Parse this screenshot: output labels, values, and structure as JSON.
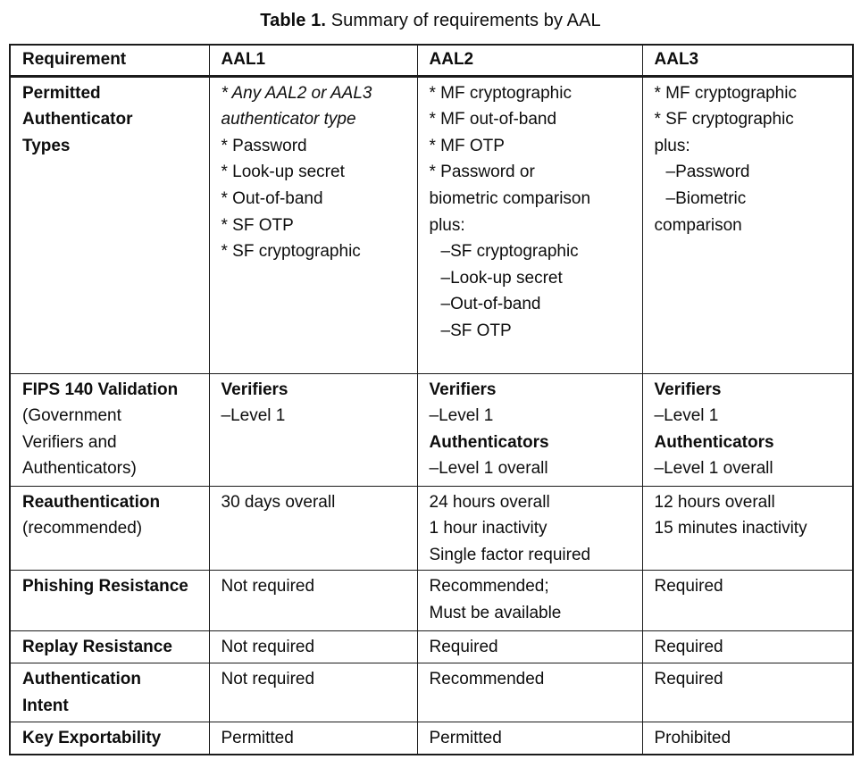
{
  "page": {
    "title_label": "Table 1.",
    "title_text": " Summary of requirements by AAL"
  },
  "table": {
    "headers": [
      "Requirement",
      "AAL1",
      "AAL2",
      "AAL3"
    ],
    "rows": [
      {
        "cells": [
          {
            "lines": [
              {
                "text": "Permitted",
                "bold": true
              },
              {
                "text": "Authenticator",
                "bold": true
              },
              {
                "text": "Types",
                "bold": true
              }
            ]
          },
          {
            "lines": [
              {
                "text": "* Any AAL2 or AAL3",
                "italic": true
              },
              {
                "text": "authenticator type",
                "italic": true
              },
              {
                "text": "* Password"
              },
              {
                "text": "* Look-up secret"
              },
              {
                "text": "* Out-of-band"
              },
              {
                "text": "* SF OTP"
              },
              {
                "text": "* SF cryptographic"
              }
            ]
          },
          {
            "lines": [
              {
                "text": "* MF cryptographic"
              },
              {
                "text": "* MF out-of-band"
              },
              {
                "text": "* MF OTP"
              },
              {
                "text": "* Password or"
              },
              {
                "text": "biometric comparison"
              },
              {
                "text": "plus:"
              },
              {
                "text": "–SF cryptographic",
                "indent": true
              },
              {
                "text": "–Look-up secret",
                "indent": true
              },
              {
                "text": "–Out-of-band",
                "indent": true
              },
              {
                "text": "–SF OTP",
                "indent": true
              }
            ]
          },
          {
            "lines": [
              {
                "text": "* MF cryptographic"
              },
              {
                "text": "* SF cryptographic"
              },
              {
                "text": "plus:"
              },
              {
                "text": "–Password",
                "indent": true
              },
              {
                "text": "–Biometric",
                "indent": true
              },
              {
                "text": "comparison"
              }
            ]
          }
        ]
      },
      {
        "cells": [
          {
            "lines": [
              {
                "text": "FIPS 140 Validation",
                "bold": true
              },
              {
                "text": "(Government"
              },
              {
                "text": "Verifiers and"
              },
              {
                "text": "Authenticators)"
              }
            ]
          },
          {
            "lines": [
              {
                "text": "Verifiers",
                "bold": true
              },
              {
                "text": "–Level 1"
              }
            ]
          },
          {
            "lines": [
              {
                "text": "Verifiers",
                "bold": true
              },
              {
                "text": "–Level 1"
              },
              {
                "text": "Authenticators",
                "bold": true
              },
              {
                "text": "–Level 1 overall"
              }
            ]
          },
          {
            "lines": [
              {
                "text": "Verifiers",
                "bold": true
              },
              {
                "text": "–Level 1"
              },
              {
                "text": "Authenticators",
                "bold": true
              },
              {
                "text": "–Level 1 overall"
              }
            ]
          }
        ]
      },
      {
        "cells": [
          {
            "lines": [
              {
                "text": "Reauthentication",
                "bold": true
              },
              {
                "text": "(recommended)"
              }
            ]
          },
          {
            "lines": [
              {
                "text": "30 days overall"
              }
            ]
          },
          {
            "lines": [
              {
                "text": "24 hours overall"
              },
              {
                "text": "1 hour inactivity"
              },
              {
                "text": "Single factor required"
              }
            ]
          },
          {
            "lines": [
              {
                "text": "12 hours overall"
              },
              {
                "text": "15 minutes inactivity"
              }
            ]
          }
        ]
      },
      {
        "cells": [
          {
            "lines": [
              {
                "text": "Phishing Resistance",
                "bold": true
              }
            ]
          },
          {
            "lines": [
              {
                "text": "Not required"
              }
            ]
          },
          {
            "lines": [
              {
                "text": "Recommended;"
              },
              {
                "text": "Must be available"
              }
            ]
          },
          {
            "lines": [
              {
                "text": "Required"
              }
            ]
          }
        ]
      },
      {
        "cells": [
          {
            "lines": [
              {
                "text": "Replay Resistance",
                "bold": true
              }
            ]
          },
          {
            "lines": [
              {
                "text": "Not required"
              }
            ]
          },
          {
            "lines": [
              {
                "text": "Required"
              }
            ]
          },
          {
            "lines": [
              {
                "text": "Required"
              }
            ]
          }
        ]
      },
      {
        "cells": [
          {
            "lines": [
              {
                "text": "Authentication",
                "bold": true
              },
              {
                "text": "Intent",
                "bold": true
              }
            ]
          },
          {
            "lines": [
              {
                "text": "Not required"
              }
            ]
          },
          {
            "lines": [
              {
                "text": "Recommended"
              }
            ]
          },
          {
            "lines": [
              {
                "text": "Required"
              }
            ]
          }
        ]
      },
      {
        "cells": [
          {
            "lines": [
              {
                "text": "Key Exportability",
                "bold": true
              }
            ]
          },
          {
            "lines": [
              {
                "text": "Permitted"
              }
            ]
          },
          {
            "lines": [
              {
                "text": "Permitted"
              }
            ]
          },
          {
            "lines": [
              {
                "text": "Prohibited"
              }
            ]
          }
        ]
      }
    ]
  }
}
